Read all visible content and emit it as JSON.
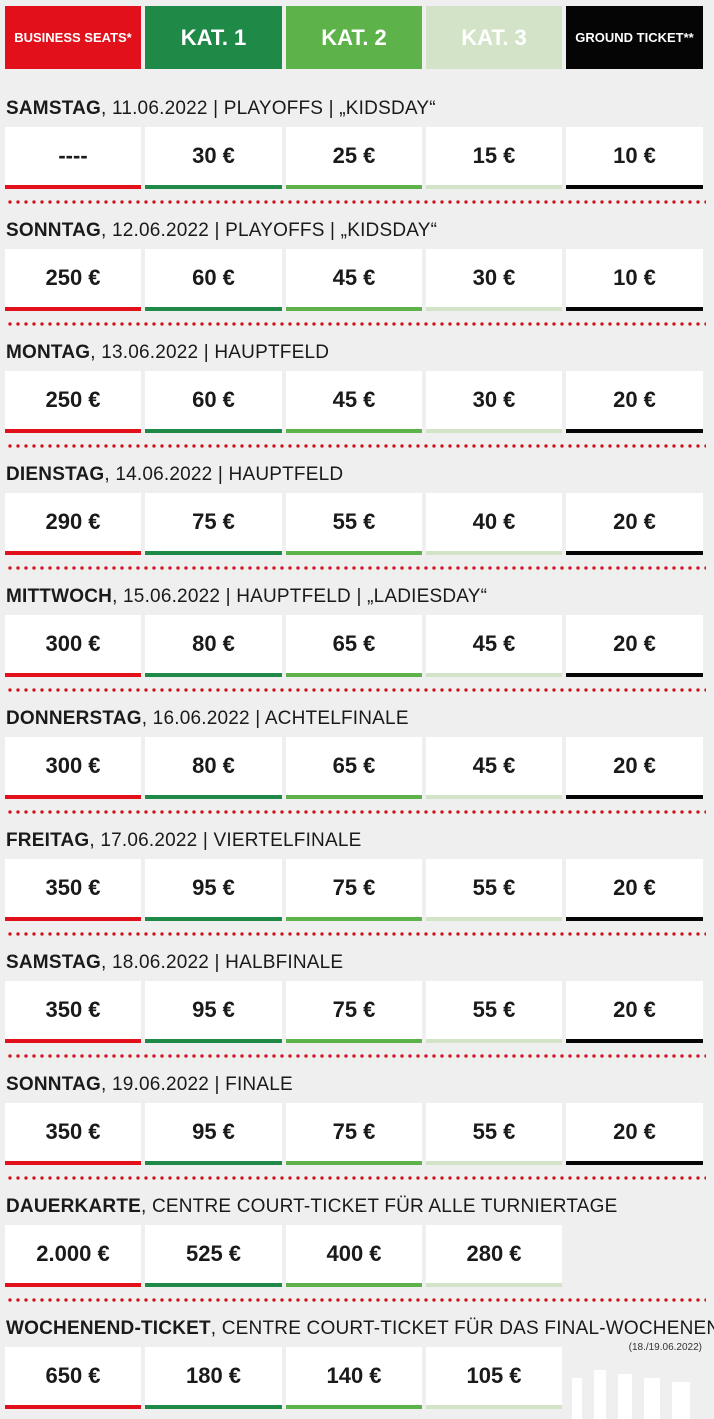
{
  "header": {
    "business": "BUSINESS SEATS*",
    "kat1": "KAT. 1",
    "kat2": "KAT. 2",
    "kat3": "KAT. 3",
    "ground": "GROUND TICKET**"
  },
  "colors": {
    "business": "#e2101a",
    "kat1": "#1f8a47",
    "kat2": "#5db249",
    "kat3": "#d3e3c7",
    "ground": "#050505"
  },
  "days": [
    {
      "day": "SAMSTAG",
      "info": ", 11.06.2022 | PLAYOFFS | „KIDSDAY“",
      "prices": [
        "----",
        "30 €",
        "25 €",
        "15 €",
        "10 €"
      ]
    },
    {
      "day": "SONNTAG",
      "info": ", 12.06.2022 | PLAYOFFS | „KIDSDAY“",
      "prices": [
        "250 €",
        "60 €",
        "45 €",
        "30 €",
        "10 €"
      ]
    },
    {
      "day": "MONTAG",
      "info": ", 13.06.2022 | HAUPTFELD",
      "prices": [
        "250 €",
        "60 €",
        "45 €",
        "30 €",
        "20 €"
      ]
    },
    {
      "day": "DIENSTAG",
      "info": ", 14.06.2022 | HAUPTFELD",
      "prices": [
        "290 €",
        "75 €",
        "55 €",
        "40 €",
        "20 €"
      ]
    },
    {
      "day": "MITTWOCH",
      "info": ", 15.06.2022 | HAUPTFELD | „LADIESDAY“",
      "prices": [
        "300 €",
        "80 €",
        "65 €",
        "45 €",
        "20 €"
      ]
    },
    {
      "day": "DONNERSTAG",
      "info": ", 16.06.2022 | ACHTELFINALE",
      "prices": [
        "300 €",
        "80 €",
        "65 €",
        "45 €",
        "20 €"
      ]
    },
    {
      "day": "FREITAG",
      "info": ", 17.06.2022 | VIERTELFINALE",
      "prices": [
        "350 €",
        "95 €",
        "75 €",
        "55 €",
        "20 €"
      ]
    },
    {
      "day": "SAMSTAG",
      "info": ", 18.06.2022 | HALBFINALE",
      "prices": [
        "350 €",
        "95 €",
        "75 €",
        "55 €",
        "20 €"
      ]
    },
    {
      "day": "SONNTAG",
      "info": ", 19.06.2022 | FINALE",
      "prices": [
        "350 €",
        "95 €",
        "75 €",
        "55 €",
        "20 €"
      ]
    },
    {
      "day": "DAUERKARTE",
      "info": ", CENTRE COURT-TICKET FÜR ALLE TURNIERTAGE",
      "prices": [
        "2.000 €",
        "525 €",
        "400 €",
        "280 €"
      ]
    },
    {
      "day": "WOCHENEND-TICKET",
      "info": ", CENTRE COURT-TICKET FÜR DAS FINAL-WOCHENENDE",
      "prices": [
        "650 €",
        "180 €",
        "140 €",
        "105 €"
      ],
      "note": "(18./19.06.2022)"
    }
  ]
}
